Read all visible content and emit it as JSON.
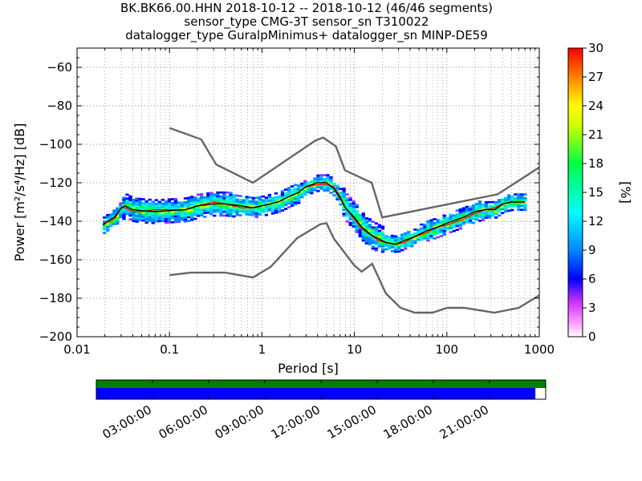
{
  "title": {
    "line1": "BK.BK66.00.HHN   2018-10-12 -- 2018-10-12  (46/46 segments)",
    "line2": "sensor_type CMG-3T sensor_sn T310022",
    "line3": "datalogger_type GuralpMinimus+ datalogger_sn MINP-DE59"
  },
  "chart_data": [
    {
      "type": "heatmap",
      "title": "BK.BK66.00.HHN   2018-10-12 -- 2018-10-12  (46/46 segments)",
      "xlabel": "Period [s]",
      "ylabel": "Power [m²/s⁴/Hz] [dB]",
      "xscale": "log",
      "xlim": [
        0.01,
        1000
      ],
      "ylim": [
        -200,
        -50
      ],
      "xticks": [
        0.01,
        0.1,
        1,
        10,
        100,
        1000
      ],
      "xtick_labels": [
        "0.01",
        "0.1",
        "1",
        "10",
        "100",
        "1000"
      ],
      "yticks": [
        -200,
        -180,
        -160,
        -140,
        -120,
        -100,
        -80,
        -60
      ],
      "ytick_labels": [
        "−200",
        "−180",
        "−160",
        "−140",
        "−120",
        "−100",
        "−80",
        "−60"
      ],
      "grid": true,
      "colorbar": {
        "label": "[%]",
        "range": [
          0,
          30
        ],
        "ticks": [
          0,
          3,
          6,
          9,
          12,
          15,
          18,
          21,
          24,
          27,
          30
        ]
      },
      "noise_models": [
        {
          "name": "high",
          "points": [
            [
              0.1,
              -91.5
            ],
            [
              0.22,
              -97.4
            ],
            [
              0.32,
              -110.5
            ],
            [
              0.8,
              -120
            ],
            [
              3.8,
              -98
            ],
            [
              4.6,
              -96.5
            ],
            [
              6.3,
              -101
            ],
            [
              7.9,
              -113.5
            ],
            [
              15.4,
              -120
            ],
            [
              20,
              -138
            ],
            [
              354,
              -126
            ],
            [
              1000,
              -112
            ]
          ]
        },
        {
          "name": "low",
          "points": [
            [
              0.1,
              -168
            ],
            [
              0.17,
              -166.7
            ],
            [
              0.4,
              -166.7
            ],
            [
              0.8,
              -169.2
            ],
            [
              1.24,
              -163.7
            ],
            [
              2.4,
              -148.8
            ],
            [
              4.3,
              -141.5
            ],
            [
              5,
              -141
            ],
            [
              6,
              -149
            ],
            [
              10,
              -163
            ],
            [
              12,
              -166.2
            ],
            [
              15.6,
              -162.1
            ],
            [
              21.9,
              -177.5
            ],
            [
              31.6,
              -185
            ],
            [
              45,
              -187.5
            ],
            [
              70,
              -187.5
            ],
            [
              101,
              -185
            ],
            [
              154,
              -185
            ],
            [
              328,
              -187.5
            ],
            [
              600,
              -185
            ],
            [
              1000,
              -178.5
            ]
          ]
        }
      ],
      "median": [
        [
          0.019,
          -142
        ],
        [
          0.023,
          -139
        ],
        [
          0.026,
          -137.5
        ],
        [
          0.03,
          -133
        ],
        [
          0.033,
          -132
        ],
        [
          0.04,
          -134
        ],
        [
          0.05,
          -134.5
        ],
        [
          0.07,
          -135
        ],
        [
          0.1,
          -134.5
        ],
        [
          0.15,
          -134
        ],
        [
          0.2,
          -132
        ],
        [
          0.3,
          -131
        ],
        [
          0.4,
          -131
        ],
        [
          0.6,
          -132
        ],
        [
          0.8,
          -133
        ],
        [
          1,
          -132
        ],
        [
          1.5,
          -130
        ],
        [
          2,
          -127
        ],
        [
          2.5,
          -125
        ],
        [
          3,
          -122
        ],
        [
          4,
          -120
        ],
        [
          5,
          -120
        ],
        [
          6,
          -123
        ],
        [
          7,
          -128
        ],
        [
          8,
          -133
        ],
        [
          10,
          -138
        ],
        [
          12,
          -143
        ],
        [
          15,
          -147
        ],
        [
          18,
          -149
        ],
        [
          22,
          -151
        ],
        [
          28,
          -152
        ],
        [
          35,
          -150
        ],
        [
          45,
          -148
        ],
        [
          60,
          -145
        ],
        [
          80,
          -143
        ],
        [
          100,
          -141
        ],
        [
          150,
          -138
        ],
        [
          200,
          -135
        ],
        [
          260,
          -134
        ],
        [
          330,
          -134
        ],
        [
          400,
          -131
        ],
        [
          500,
          -130
        ],
        [
          700,
          -130
        ]
      ],
      "mode": [
        [
          0.019,
          -141
        ],
        [
          0.023,
          -140
        ],
        [
          0.026,
          -138
        ],
        [
          0.03,
          -133
        ],
        [
          0.033,
          -133
        ],
        [
          0.04,
          -135
        ],
        [
          0.05,
          -135
        ],
        [
          0.07,
          -134
        ],
        [
          0.1,
          -134
        ],
        [
          0.15,
          -134
        ],
        [
          0.2,
          -132
        ],
        [
          0.3,
          -130
        ],
        [
          0.4,
          -131
        ],
        [
          0.6,
          -133
        ],
        [
          0.8,
          -133
        ],
        [
          1,
          -132
        ],
        [
          1.5,
          -130
        ],
        [
          2,
          -127
        ],
        [
          2.5,
          -125
        ],
        [
          3,
          -122
        ],
        [
          4,
          -121
        ],
        [
          5,
          -121
        ],
        [
          6,
          -122
        ],
        [
          7,
          -127
        ],
        [
          8,
          -133
        ],
        [
          10,
          -139
        ],
        [
          12,
          -144
        ],
        [
          15,
          -147
        ],
        [
          18,
          -150
        ],
        [
          22,
          -151
        ],
        [
          28,
          -152
        ],
        [
          35,
          -151
        ],
        [
          45,
          -148
        ],
        [
          60,
          -146
        ],
        [
          80,
          -143
        ],
        [
          100,
          -142
        ],
        [
          150,
          -139
        ],
        [
          200,
          -136
        ],
        [
          260,
          -134
        ],
        [
          330,
          -133
        ],
        [
          400,
          -131
        ],
        [
          500,
          -130
        ],
        [
          700,
          -130
        ]
      ],
      "bands": [
        {
          "lo": 0.018,
          "hi": 0.03,
          "center": -140,
          "spread": 3,
          "color": "#00ff80"
        },
        {
          "lo": 0.03,
          "hi": 0.12,
          "center": -134,
          "spread": 6,
          "color": "#00e0ff"
        },
        {
          "lo": 0.03,
          "hi": 0.12,
          "center": -128,
          "spread": 3,
          "color": "#ff33ff"
        },
        {
          "lo": 0.12,
          "hi": 0.5,
          "center": -131,
          "spread": 6,
          "color": "#00ccff"
        },
        {
          "lo": 0.5,
          "hi": 2.5,
          "center": -130,
          "spread": 5,
          "color": "#ff33ff"
        },
        {
          "lo": 2.5,
          "hi": 7,
          "center": -121,
          "spread": 4,
          "color": "#00ff66"
        },
        {
          "lo": 7,
          "hi": 20,
          "center": -142,
          "spread": 7,
          "color": "#cc33ff"
        },
        {
          "lo": 20,
          "hi": 50,
          "center": -151,
          "spread": 4,
          "color": "#00ff99"
        },
        {
          "lo": 50,
          "hi": 250,
          "center": -142,
          "spread": 5,
          "color": "#cc33ff"
        },
        {
          "lo": 250,
          "hi": 700,
          "center": -130,
          "spread": 3,
          "color": "#00ff66"
        }
      ]
    },
    {
      "type": "timeline",
      "xtick_labels": [
        "03:00:00",
        "06:00:00",
        "09:00:00",
        "12:00:00",
        "15:00:00",
        "18:00:00",
        "21:00:00"
      ],
      "data_coverage_fraction": 0.977,
      "segment_coverage_fraction": 1.0,
      "colors": {
        "coverage": "#0000ff",
        "segments": "#008000"
      }
    }
  ]
}
